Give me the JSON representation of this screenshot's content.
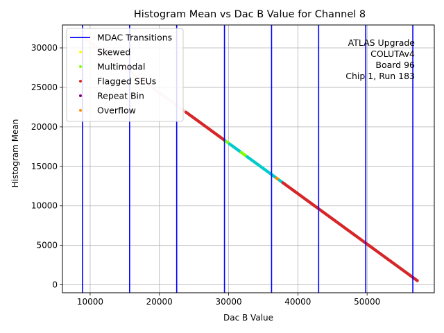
{
  "chart_data": {
    "type": "scatter",
    "title": "Histogram Mean vs Dac B Value for Channel 8",
    "xlabel": "Dac B Value",
    "ylabel": "Histogram Mean",
    "xlim": [
      6000,
      59700
    ],
    "ylim": [
      -1000,
      32900
    ],
    "xticks": [
      10000,
      20000,
      30000,
      40000,
      50000
    ],
    "yticks": [
      0,
      5000,
      10000,
      15000,
      20000,
      25000,
      30000
    ],
    "xtick_labels": [
      "10000",
      "20000",
      "30000",
      "40000",
      "50000"
    ],
    "ytick_labels": [
      "0",
      "5000",
      "10000",
      "15000",
      "20000",
      "25000",
      "30000"
    ],
    "grid": true,
    "legend_position": "top-left",
    "legend": [
      {
        "label": "MDAC Transitions",
        "kind": "line",
        "color": "#0000ff"
      },
      {
        "label": "Skewed",
        "kind": "marker",
        "color": "#ffff00"
      },
      {
        "label": "Multimodal",
        "kind": "marker",
        "color": "#7fff00"
      },
      {
        "label": "Flagged SEUs",
        "kind": "marker",
        "color": "#d62728"
      },
      {
        "label": "Repeat Bin",
        "kind": "marker",
        "color": "#800080"
      },
      {
        "label": "Overflow",
        "kind": "marker",
        "color": "#ff8c00"
      }
    ],
    "mdac_transitions": {
      "name": "MDAC Transitions",
      "color": "#0000ff",
      "x": [
        8900,
        15700,
        22500,
        29400,
        36200,
        43000,
        49800,
        56600
      ]
    },
    "series": [
      {
        "name": "Flagged SEUs",
        "color": "#d62728",
        "x": [
          8900,
          57300
        ],
        "y": [
          31400,
          500
        ],
        "note_density": "dense"
      }
    ],
    "background_points": {
      "color": "#f4cccc",
      "x_range": [
        8900,
        23800
      ]
    },
    "highlight_segments": [
      {
        "color": "#00cccc",
        "x_range": [
          29500,
          37800
        ]
      },
      {
        "color": "#7fff00",
        "x_range": [
          31800,
          32600
        ]
      },
      {
        "color": "#7fff00",
        "x_range": [
          29600,
          30100
        ]
      },
      {
        "color": "#ff8c00",
        "x_range": [
          36900,
          37300
        ]
      }
    ],
    "annotation": {
      "lines": [
        "ATLAS Upgrade",
        "COLUTAv4",
        " Board 96",
        "Chip 1, Run 183"
      ]
    }
  }
}
